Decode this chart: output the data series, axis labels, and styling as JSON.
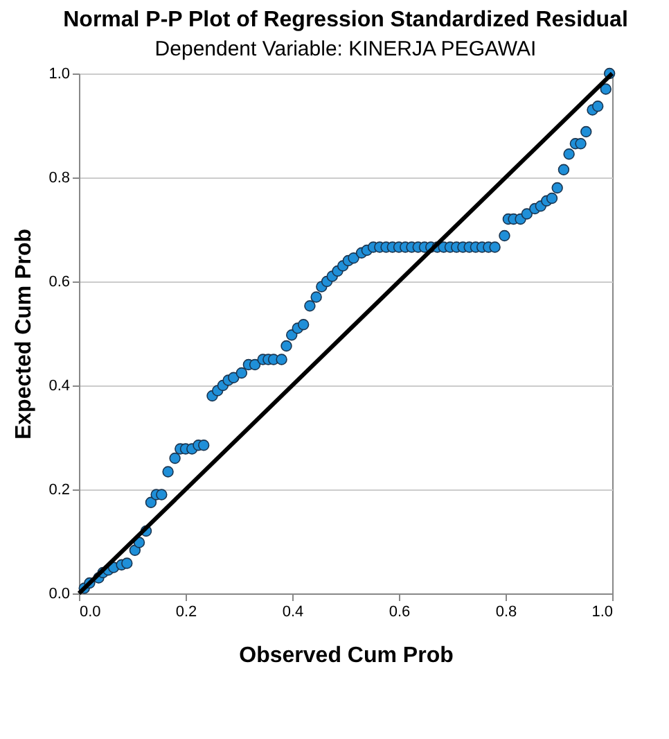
{
  "chart_data": {
    "type": "scatter",
    "title": "Normal P-P Plot of Regression Standardized Residual",
    "subtitle": "Dependent Variable: KINERJA PEGAWAI",
    "xlabel": "Observed Cum Prob",
    "ylabel": "Expected Cum Prob",
    "xlim": [
      0,
      1
    ],
    "ylim": [
      0,
      1
    ],
    "xticks": [
      {
        "value": 0,
        "label": "0.0"
      },
      0.2,
      0.4,
      0.6,
      0.8,
      {
        "value": 1,
        "label": "1.0"
      }
    ],
    "yticks": [
      {
        "value": 0,
        "label": "0.0"
      },
      0.2,
      0.4,
      0.6,
      0.8,
      {
        "value": 1,
        "label": "1.0"
      }
    ],
    "grid": "y",
    "series": [
      {
        "marker": "circle",
        "color": "#1f8fd8",
        "x": [
          0.01,
          0.02,
          0.037,
          0.045,
          0.055,
          0.065,
          0.08,
          0.09,
          0.105,
          0.113,
          0.126,
          0.135,
          0.145,
          0.155,
          0.167,
          0.18,
          0.19,
          0.2,
          0.212,
          0.224,
          0.234,
          0.25,
          0.26,
          0.27,
          0.28,
          0.29,
          0.305,
          0.318,
          0.33,
          0.345,
          0.355,
          0.365,
          0.38,
          0.389,
          0.399,
          0.41,
          0.421,
          0.433,
          0.445,
          0.455,
          0.465,
          0.475,
          0.485,
          0.495,
          0.505,
          0.515,
          0.53,
          0.54,
          0.552,
          0.564,
          0.576,
          0.588,
          0.6,
          0.612,
          0.624,
          0.636,
          0.648,
          0.66,
          0.672,
          0.684,
          0.696,
          0.708,
          0.72,
          0.732,
          0.744,
          0.756,
          0.768,
          0.78,
          0.798,
          0.805,
          0.815,
          0.828,
          0.84,
          0.855,
          0.866,
          0.877,
          0.887,
          0.897,
          0.909,
          0.919,
          0.931,
          0.941,
          0.951,
          0.963,
          0.973,
          0.988,
          0.995
        ],
        "values": [
          0.01,
          0.02,
          0.03,
          0.04,
          0.045,
          0.05,
          0.055,
          0.058,
          0.083,
          0.098,
          0.12,
          0.175,
          0.19,
          0.19,
          0.234,
          0.26,
          0.278,
          0.278,
          0.278,
          0.285,
          0.285,
          0.38,
          0.39,
          0.4,
          0.41,
          0.415,
          0.424,
          0.44,
          0.44,
          0.45,
          0.45,
          0.45,
          0.45,
          0.476,
          0.497,
          0.51,
          0.517,
          0.553,
          0.57,
          0.59,
          0.6,
          0.61,
          0.62,
          0.63,
          0.64,
          0.645,
          0.655,
          0.66,
          0.666,
          0.666,
          0.666,
          0.666,
          0.666,
          0.666,
          0.666,
          0.666,
          0.666,
          0.666,
          0.666,
          0.666,
          0.666,
          0.666,
          0.666,
          0.666,
          0.666,
          0.666,
          0.666,
          0.666,
          0.688,
          0.72,
          0.72,
          0.72,
          0.73,
          0.74,
          0.745,
          0.755,
          0.76,
          0.78,
          0.815,
          0.845,
          0.865,
          0.865,
          0.888,
          0.93,
          0.937,
          0.97,
          1.0
        ]
      },
      {
        "type": "line",
        "marker": "none",
        "line_style": "solid",
        "color": "#000000",
        "x": [
          0,
          1
        ],
        "values": [
          0,
          1
        ]
      }
    ]
  }
}
